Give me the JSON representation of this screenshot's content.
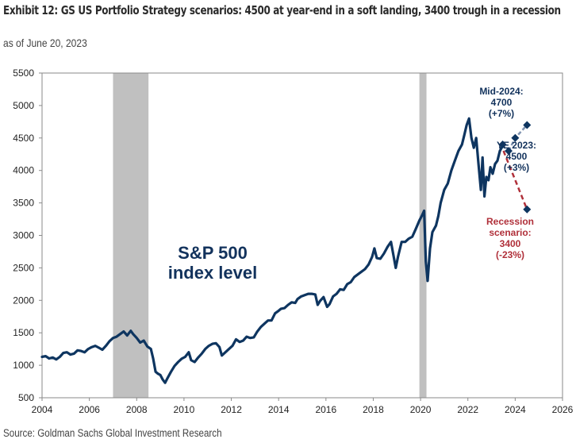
{
  "header": {
    "title": "Exhibit 12: GS US Portfolio Strategy scenarios: 4500 at year-end in a soft landing, 3400 trough in a recession",
    "subtitle": "as of June 20, 2023"
  },
  "footer": {
    "source": "Source: Goldman Sachs Global Investment Research"
  },
  "colors": {
    "series": "#0e3560",
    "recession_band": "#c0c0c0",
    "soft_landing_path": "#7f93b0",
    "recession_path": "#b0303a",
    "annotation_blue": "#12325c",
    "annotation_red": "#b0303a",
    "axis": "#8a8a8a"
  },
  "chart_data": {
    "type": "line",
    "title": "Exhibit 12: GS US Portfolio Strategy scenarios: 4500 at year-end in a soft landing, 3400 trough in a recession",
    "subtitle": "as of June 20, 2023",
    "xlabel": "",
    "ylabel": "",
    "xlim": [
      2004,
      2026
    ],
    "ylim": [
      500,
      5500
    ],
    "grid": false,
    "legend": "none",
    "x_ticks": [
      "2004",
      "2006",
      "2008",
      "2010",
      "2012",
      "2014",
      "2016",
      "2018",
      "2020",
      "2022",
      "2024",
      "2026"
    ],
    "x_tick_values": [
      2004,
      2006,
      2008,
      2010,
      2012,
      2014,
      2016,
      2018,
      2020,
      2022,
      2024,
      2026
    ],
    "y_ticks": [
      "500",
      "1000",
      "1500",
      "2000",
      "2500",
      "3000",
      "3500",
      "4000",
      "4500",
      "5000",
      "5500"
    ],
    "y_tick_values": [
      500,
      1000,
      1500,
      2000,
      2500,
      3000,
      3500,
      4000,
      4500,
      5000,
      5500
    ],
    "series_label": [
      "S&P 500",
      "index level"
    ],
    "recession_bands": [
      {
        "start": 2007.0,
        "end": 2008.5
      },
      {
        "start": 2019.95,
        "end": 2020.25
      }
    ],
    "series": [
      {
        "name": "S&P 500 index level",
        "x": [
          2004.0,
          2004.15,
          2004.3,
          2004.45,
          2004.6,
          2004.75,
          2004.9,
          2005.05,
          2005.2,
          2005.35,
          2005.5,
          2005.65,
          2005.8,
          2005.95,
          2006.1,
          2006.25,
          2006.4,
          2006.55,
          2006.7,
          2006.85,
          2007.0,
          2007.15,
          2007.3,
          2007.45,
          2007.6,
          2007.75,
          2007.85,
          2008.0,
          2008.15,
          2008.3,
          2008.45,
          2008.6,
          2008.7,
          2008.8,
          2008.9,
          2009.0,
          2009.1,
          2009.2,
          2009.3,
          2009.45,
          2009.6,
          2009.75,
          2009.9,
          2010.05,
          2010.2,
          2010.3,
          2010.45,
          2010.6,
          2010.75,
          2010.9,
          2011.05,
          2011.2,
          2011.35,
          2011.5,
          2011.6,
          2011.75,
          2011.9,
          2012.05,
          2012.2,
          2012.35,
          2012.5,
          2012.65,
          2012.8,
          2012.95,
          2013.1,
          2013.25,
          2013.4,
          2013.55,
          2013.7,
          2013.85,
          2014.0,
          2014.1,
          2014.25,
          2014.4,
          2014.55,
          2014.7,
          2014.8,
          2014.95,
          2015.1,
          2015.25,
          2015.4,
          2015.55,
          2015.65,
          2015.75,
          2015.9,
          2016.05,
          2016.15,
          2016.3,
          2016.45,
          2016.6,
          2016.75,
          2016.9,
          2017.05,
          2017.2,
          2017.35,
          2017.5,
          2017.65,
          2017.8,
          2017.95,
          2018.05,
          2018.15,
          2018.3,
          2018.45,
          2018.6,
          2018.75,
          2018.85,
          2018.95,
          2019.05,
          2019.2,
          2019.35,
          2019.5,
          2019.65,
          2019.8,
          2019.95,
          2020.05,
          2020.15,
          2020.22,
          2020.3,
          2020.4,
          2020.5,
          2020.65,
          2020.75,
          2020.85,
          2021.0,
          2021.15,
          2021.3,
          2021.45,
          2021.6,
          2021.75,
          2021.85,
          2021.95,
          2022.05,
          2022.15,
          2022.25,
          2022.35,
          2022.45,
          2022.55,
          2022.62,
          2022.7,
          2022.78,
          2022.87,
          2022.95,
          2023.05,
          2023.15,
          2023.25,
          2023.35,
          2023.47
        ],
        "values": [
          1130,
          1140,
          1105,
          1120,
          1090,
          1130,
          1190,
          1200,
          1165,
          1180,
          1230,
          1220,
          1200,
          1250,
          1280,
          1300,
          1270,
          1240,
          1300,
          1370,
          1420,
          1440,
          1480,
          1520,
          1460,
          1530,
          1480,
          1420,
          1350,
          1380,
          1290,
          1250,
          1100,
          900,
          870,
          850,
          780,
          730,
          800,
          900,
          990,
          1050,
          1100,
          1130,
          1200,
          1080,
          1050,
          1120,
          1180,
          1250,
          1300,
          1330,
          1340,
          1280,
          1150,
          1200,
          1250,
          1300,
          1400,
          1360,
          1380,
          1440,
          1420,
          1430,
          1520,
          1590,
          1640,
          1690,
          1690,
          1800,
          1840,
          1870,
          1880,
          1930,
          1970,
          1960,
          2020,
          2060,
          2080,
          2100,
          2100,
          2090,
          1930,
          1990,
          2050,
          1900,
          1940,
          2060,
          2100,
          2170,
          2160,
          2250,
          2280,
          2360,
          2400,
          2440,
          2480,
          2550,
          2670,
          2800,
          2650,
          2640,
          2720,
          2820,
          2900,
          2700,
          2500,
          2680,
          2900,
          2900,
          2950,
          2980,
          3100,
          3230,
          3300,
          3380,
          2600,
          2300,
          2800,
          3050,
          3150,
          3300,
          3500,
          3700,
          3800,
          4000,
          4150,
          4300,
          4400,
          4550,
          4700,
          4800,
          4500,
          4350,
          4500,
          4100,
          3700,
          4200,
          3600,
          3900,
          3850,
          4050,
          3950,
          4100,
          4150,
          4300,
          4380
        ]
      }
    ],
    "scenarios": {
      "anchor": {
        "x": 2023.47,
        "y": 4400
      },
      "soft_landing": [
        {
          "x": 2023.72,
          "y": 4300
        },
        {
          "x": 2024.0,
          "y": 4500,
          "label": [
            "YE 2023:",
            "4500",
            "(+3%)"
          ]
        },
        {
          "x": 2024.5,
          "y": 4700,
          "label": [
            "Mid-2024:",
            "4700",
            "(+7%)"
          ]
        }
      ],
      "recession": [
        {
          "x": 2024.5,
          "y": 3400,
          "label": [
            "Recession",
            "scenario:",
            "3400",
            "(-23%)"
          ]
        }
      ]
    }
  }
}
